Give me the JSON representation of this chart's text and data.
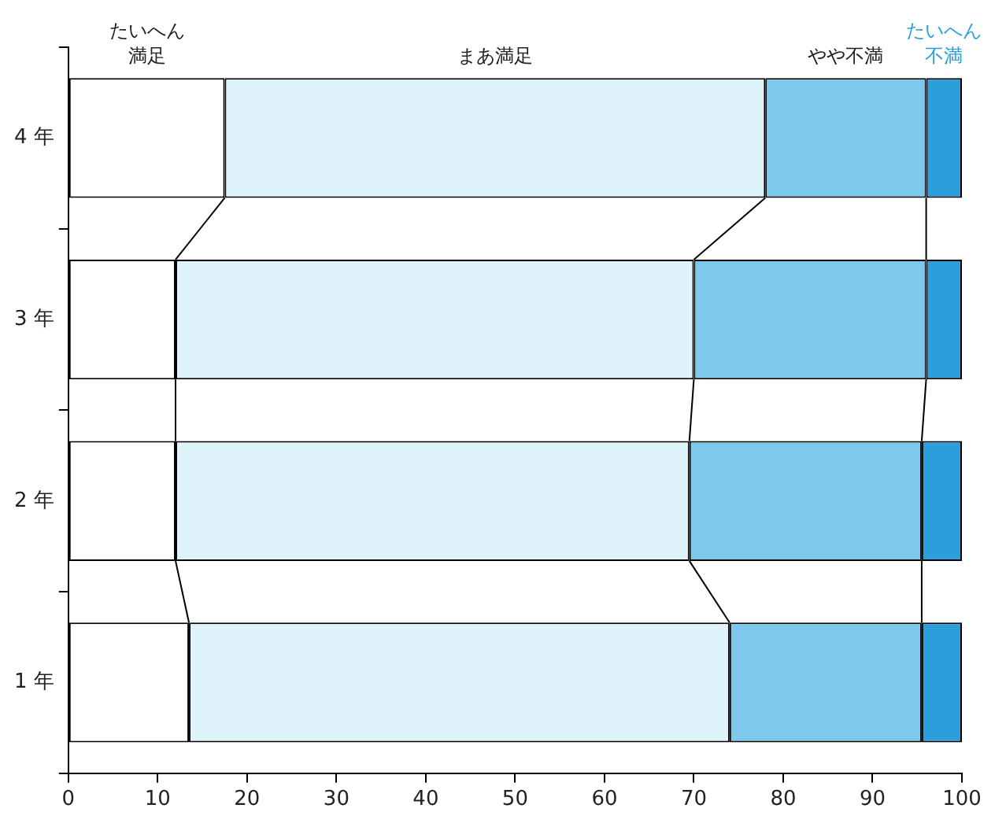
{
  "chart_data": {
    "type": "bar",
    "orientation": "horizontal",
    "stacked": true,
    "categories": [
      "4 年",
      "3 年",
      "2 年",
      "1 年"
    ],
    "series": [
      {
        "name": "たいへん満足",
        "color": "#ffffff",
        "values": [
          17.5,
          12,
          12,
          13.5
        ]
      },
      {
        "name": "まあ満足",
        "color": "#dff3fb",
        "values": [
          60.5,
          58,
          57.5,
          60.5
        ]
      },
      {
        "name": "やや不満",
        "color": "#7dc9ee",
        "values": [
          18,
          26,
          26,
          21.5
        ]
      },
      {
        "name": "たいへん不満",
        "color": "#2a9fdc",
        "values": [
          4,
          4,
          4.5,
          4.5
        ]
      }
    ],
    "xlim": [
      0,
      100
    ],
    "xticks": [
      0,
      10,
      20,
      30,
      40,
      50,
      60,
      70,
      80,
      90,
      100
    ],
    "grid": false,
    "legend": "top"
  }
}
